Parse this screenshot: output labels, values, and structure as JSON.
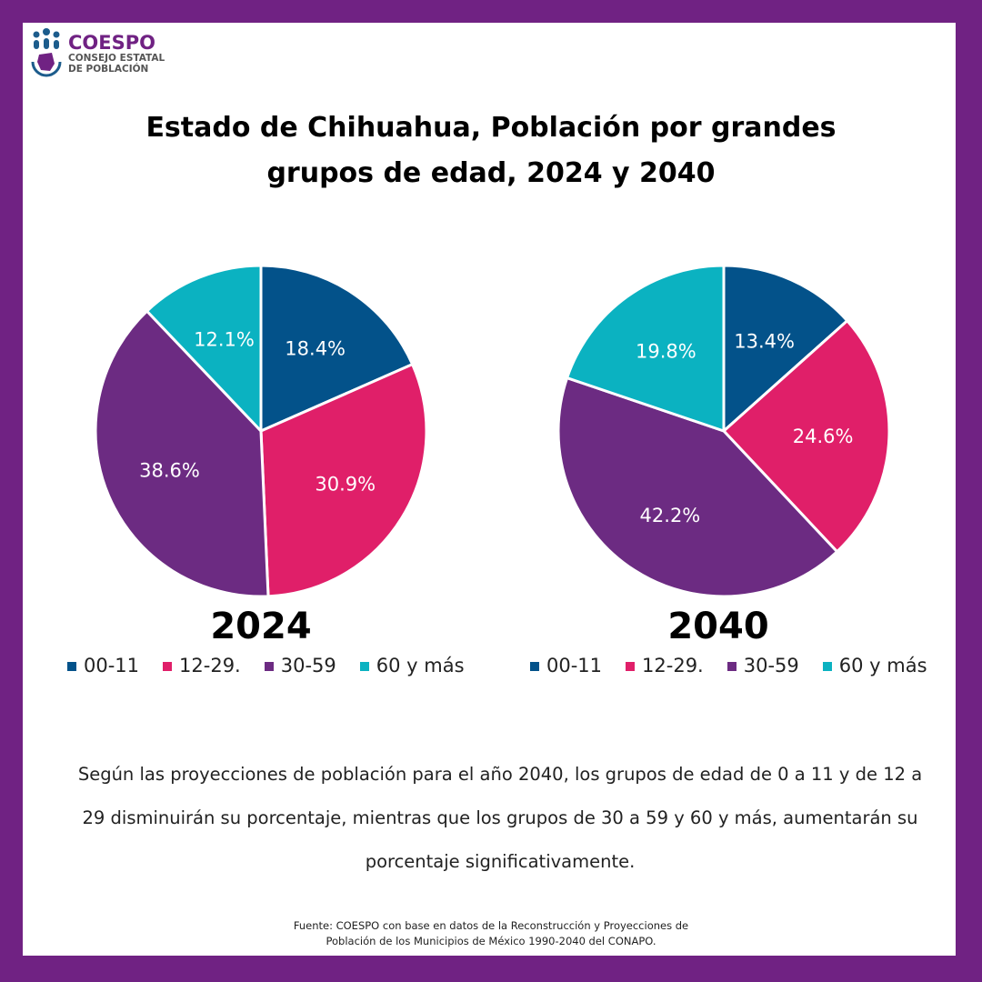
{
  "logo": {
    "name": "COESPO",
    "subtitle_line1": "CONSEJO ESTATAL",
    "subtitle_line2": "DE POBLACIÓN"
  },
  "title_line1": "Estado de Chihuahua, Población por grandes",
  "title_line2": "grupos de edad, 2024 y 2040",
  "chart_data": [
    {
      "type": "pie",
      "title": "2024",
      "categories": [
        "00-11",
        "12-29.",
        "30-59",
        "60 y más"
      ],
      "values": [
        18.4,
        30.9,
        38.6,
        12.1
      ],
      "labels": [
        "18.4%",
        "30.9%",
        "38.6%",
        "12.1%"
      ],
      "colors": [
        "#03528a",
        "#e01f69",
        "#6c2b82",
        "#0bb2c1"
      ],
      "legend": "bottom"
    },
    {
      "type": "pie",
      "title": "2040",
      "categories": [
        "00-11",
        "12-29.",
        "30-59",
        "60 y más"
      ],
      "values": [
        13.4,
        24.6,
        42.2,
        19.8
      ],
      "labels": [
        "13.4%",
        "24.6%",
        "42.2%",
        "19.8%"
      ],
      "colors": [
        "#03528a",
        "#e01f69",
        "#6c2b82",
        "#0bb2c1"
      ],
      "legend": "bottom"
    }
  ],
  "note": "Según las proyecciones de población para el año 2040, los grupos de edad de 0 a 11 y de 12 a 29 disminuirán su porcentaje, mientras que los grupos de 30 a 59 y 60 y más, aumentarán su porcentaje significativamente.",
  "source_line1": "Fuente: COESPO con base en datos de la Reconstrucción y Proyecciones de",
  "source_line2": "Población de los Municipios de México 1990-2040 del CONAPO."
}
